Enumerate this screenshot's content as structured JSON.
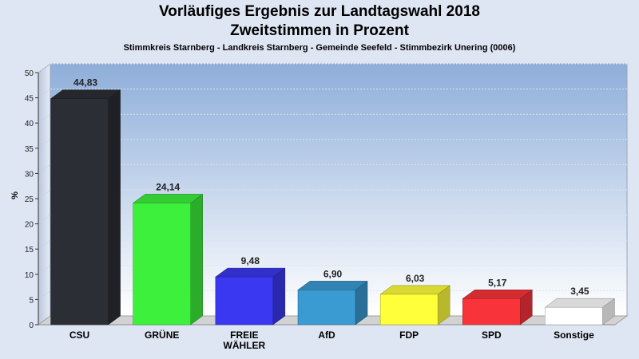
{
  "chart_data": {
    "type": "bar",
    "title": "Vorläufiges Ergebnis zur Landtagswahl 2018",
    "subtitle": "Zweitstimmen in Prozent",
    "caption": "Stimmkreis Starnberg - Landkreis Starnberg - Gemeinde Seefeld - Stimmbezirk Unering (0006)",
    "ylabel": "%",
    "xlabel": "",
    "ylim": [
      0,
      50
    ],
    "yticks": [
      0,
      5,
      10,
      15,
      20,
      25,
      30,
      35,
      40,
      45,
      50
    ],
    "grid": true,
    "categories": [
      "CSU",
      "GRÜNE",
      "FREIE WÄHLER",
      "AfD",
      "FDP",
      "SPD",
      "Sonstige"
    ],
    "category_lines": [
      [
        "CSU"
      ],
      [
        "GRÜNE"
      ],
      [
        "FREIE",
        "WÄHLER"
      ],
      [
        "AfD"
      ],
      [
        "FDP"
      ],
      [
        "SPD"
      ],
      [
        "Sonstige"
      ]
    ],
    "values": [
      44.83,
      24.14,
      9.48,
      6.9,
      6.03,
      5.17,
      3.45
    ],
    "value_labels": [
      "44,83",
      "24,14",
      "9,48",
      "6,90",
      "6,03",
      "5,17",
      "3,45"
    ],
    "colors": [
      "#2b2e35",
      "#3cf03c",
      "#3a38f0",
      "#3a9ad2",
      "#ffff3a",
      "#f8343a",
      "#ffffff"
    ]
  }
}
